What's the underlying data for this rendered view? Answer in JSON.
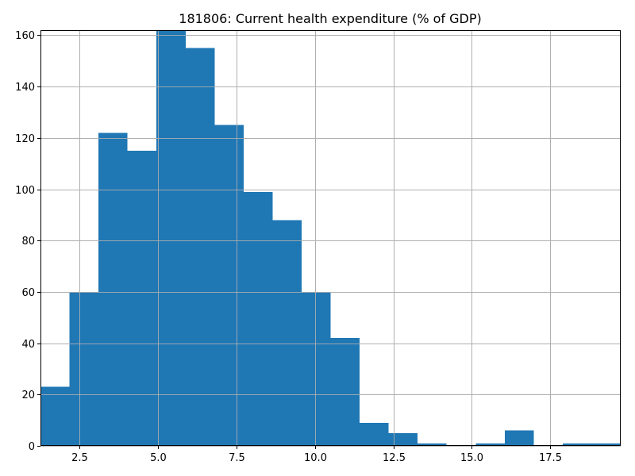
{
  "chart_data": {
    "type": "bar",
    "title": "181806: Current health expenditure (% of GDP)",
    "xlabel": "",
    "ylabel": "",
    "xlim": [
      1.25,
      19.75
    ],
    "ylim": [
      0,
      162
    ],
    "grid": true,
    "bar_color": "#1f77b4",
    "bin_edges": [
      1.25,
      2.175,
      3.1,
      4.025,
      4.95,
      5.875,
      6.8,
      7.725,
      8.65,
      9.575,
      10.5,
      11.425,
      12.35,
      13.275,
      14.2,
      15.125,
      16.05,
      16.975,
      17.9,
      18.825,
      19.75
    ],
    "values": [
      23,
      60,
      122,
      115,
      162,
      155,
      125,
      99,
      88,
      60,
      42,
      9,
      5,
      1,
      0,
      1,
      6,
      0,
      1,
      1
    ],
    "xticks": [
      2.5,
      5.0,
      7.5,
      10.0,
      12.5,
      15.0,
      17.5
    ],
    "xtick_labels": [
      "2.5",
      "5.0",
      "7.5",
      "10.0",
      "12.5",
      "15.0",
      "17.5"
    ],
    "yticks": [
      0,
      20,
      40,
      60,
      80,
      100,
      120,
      140,
      160
    ],
    "ytick_labels": [
      "0",
      "20",
      "40",
      "60",
      "80",
      "100",
      "120",
      "140",
      "160"
    ]
  }
}
